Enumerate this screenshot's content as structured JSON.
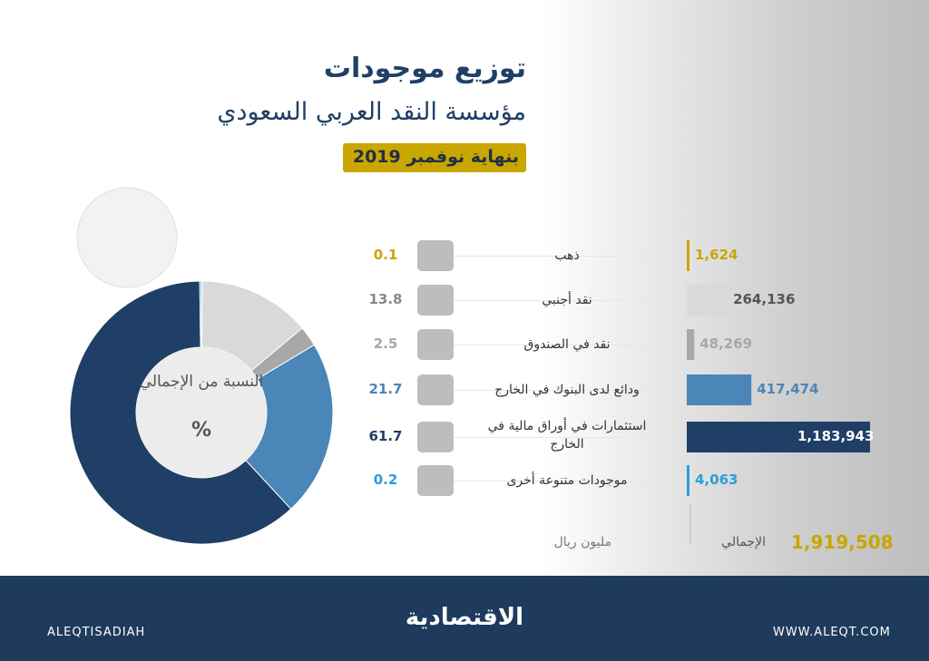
{
  "header": {
    "title": "توزيع موجودات",
    "subtitle": "مؤسسة النقد العربي السعودي",
    "date": "بنهاية نوفمبر 2019"
  },
  "chart_data": [
    {
      "type": "pie",
      "center_label": "النسبة من الإجمالي",
      "center_symbol": "%",
      "values": [
        0.1,
        13.8,
        2.5,
        21.7,
        61.7,
        0.2
      ],
      "colors": [
        "#c9a600",
        "#d9d9d9",
        "#a8a8a8",
        "#4a86b8",
        "#1f3f66",
        "#2a9fd8"
      ]
    },
    {
      "type": "bar",
      "unit_label": "مليون ريال",
      "categories": [
        "ذهب",
        "نقد أجنبي",
        "نقد في الصندوق",
        "ودائع لدى البنوك في الخارج",
        "استثمارات في أوراق مالية في الخارج",
        "موجودات متنوعة أخرى"
      ],
      "values": [
        1624,
        264136,
        48269,
        417474,
        1183943,
        4063
      ],
      "value_labels": [
        "1,624",
        "264,136",
        "48,269",
        "417,474",
        "1,183,943",
        "4,063"
      ],
      "colors": [
        "#c9a600",
        "#d9d9d9",
        "#a8a8a8",
        "#4a86b8",
        "#1f3f66",
        "#2a9fd8"
      ],
      "total_label": "الإجمالي",
      "total": {
        "value": 1919508,
        "label": "1,919,508"
      }
    }
  ],
  "footer": {
    "handle": "ALEQTISADIAH",
    "brand": "الاقتصادية",
    "website": "WWW.ALEQT.COM"
  }
}
